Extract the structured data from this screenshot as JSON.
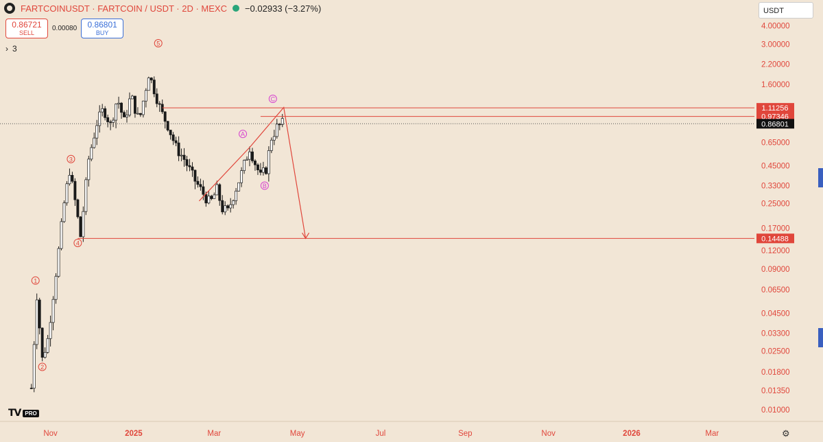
{
  "header": {
    "symbol": "FARTCOINUSDT · FARTCOIN / USDT · 2D · MEXC",
    "change": "−0.02933 (−3.27%)"
  },
  "trade": {
    "sell_price": "0.86721",
    "sell_label": "SELL",
    "spread": "0.00080",
    "buy_price": "0.86801",
    "buy_label": "BUY"
  },
  "indicators": {
    "count": "3"
  },
  "currency_select": "USDT",
  "logo": {
    "text": "TV",
    "badge": "PRO"
  },
  "colors": {
    "background": "#f2e6d6",
    "axis_text": "#e0463b",
    "line": "#e0463b",
    "wave_abc": "#d63fd0",
    "candle_up": "#ffffff",
    "candle_down": "#1a1a1a"
  },
  "chart_data": {
    "type": "candlestick",
    "title": "",
    "y_scale": "log",
    "ylim": [
      0.0085,
      5.5
    ],
    "y_ticks": [
      "4.00000",
      "3.00000",
      "2.20000",
      "1.60000",
      "0.65000",
      "0.45000",
      "0.33000",
      "0.25000",
      "0.17000",
      "0.12000",
      "0.09000",
      "0.06500",
      "0.04500",
      "0.03300",
      "0.02500",
      "0.01800",
      "0.01350",
      "0.01000"
    ],
    "x_ticks": [
      "Nov",
      "2025",
      "Mar",
      "May",
      "Jul",
      "Sep",
      "Nov",
      "2026",
      "Mar"
    ],
    "x_range": [
      "2024-09-25",
      "2026-04-01"
    ],
    "x_tick_dates": [
      "2024-11-01",
      "2025-01-01",
      "2025-03-01",
      "2025-05-01",
      "2025-07-01",
      "2025-09-01",
      "2025-11-01",
      "2026-01-01",
      "2026-03-01"
    ],
    "candle_interval": "2D",
    "price_path": [
      [
        "2024-10-18",
        0.014
      ],
      [
        "2024-10-22",
        0.06
      ],
      [
        "2024-10-26",
        0.022
      ],
      [
        "2024-10-30",
        0.03
      ],
      [
        "2024-11-03",
        0.06
      ],
      [
        "2024-11-07",
        0.12
      ],
      [
        "2024-11-11",
        0.25
      ],
      [
        "2024-11-15",
        0.42
      ],
      [
        "2024-11-19",
        0.26
      ],
      [
        "2024-11-23",
        0.15
      ],
      [
        "2024-11-29",
        0.5
      ],
      [
        "2024-12-05",
        0.88
      ],
      [
        "2024-12-10",
        1.1
      ],
      [
        "2024-12-15",
        0.85
      ],
      [
        "2024-12-20",
        1.3
      ],
      [
        "2024-12-25",
        0.9
      ],
      [
        "2024-12-30",
        1.35
      ],
      [
        "2025-01-05",
        0.9
      ],
      [
        "2025-01-12",
        1.9
      ],
      [
        "2025-01-17",
        1.4
      ],
      [
        "2025-01-21",
        1.05
      ],
      [
        "2025-01-26",
        0.85
      ],
      [
        "2025-02-01",
        0.6
      ],
      [
        "2025-02-07",
        0.5
      ],
      [
        "2025-02-14",
        0.37
      ],
      [
        "2025-02-20",
        0.3
      ],
      [
        "2025-02-26",
        0.25
      ],
      [
        "2025-03-03",
        0.31
      ],
      [
        "2025-03-07",
        0.23
      ],
      [
        "2025-03-11",
        0.22
      ],
      [
        "2025-03-16",
        0.3
      ],
      [
        "2025-03-21",
        0.4
      ],
      [
        "2025-03-27",
        0.6
      ],
      [
        "2025-03-31",
        0.47
      ],
      [
        "2025-04-04",
        0.38
      ],
      [
        "2025-04-08",
        0.43
      ],
      [
        "2025-04-12",
        0.7
      ],
      [
        "2025-04-16",
        0.82
      ],
      [
        "2025-04-20",
        0.87
      ]
    ],
    "current_price": 0.86801,
    "waves": [
      {
        "label": "1",
        "date": "2024-10-21",
        "price": 0.075
      },
      {
        "label": "2",
        "date": "2024-10-26",
        "price": 0.0195
      },
      {
        "label": "3",
        "date": "2024-11-16",
        "price": 0.5
      },
      {
        "label": "4",
        "date": "2024-11-21",
        "price": 0.135
      },
      {
        "label": "5",
        "date": "2025-01-19",
        "price": 3.05
      },
      {
        "label": "A",
        "date": "2025-03-22",
        "price": 0.74
      },
      {
        "label": "B",
        "date": "2025-04-07",
        "price": 0.33
      },
      {
        "label": "C",
        "date": "2025-04-13",
        "price": 1.28
      }
    ],
    "projection": [
      [
        "2025-02-18",
        0.26
      ],
      [
        "2025-03-27",
        0.6
      ],
      [
        "2025-04-21",
        1.12
      ],
      [
        "2025-05-07",
        0.14488
      ]
    ],
    "levels": [
      {
        "price": 1.11256,
        "label": "1.11256",
        "from": "2025-01-22",
        "style": "line"
      },
      {
        "price": 0.97346,
        "label": "0.97346",
        "from": "2025-04-04",
        "style": "line"
      },
      {
        "price": 0.86801,
        "label": "0.86801",
        "from": "2024-09-25",
        "style": "dotted"
      },
      {
        "price": 0.14488,
        "label": "0.14488",
        "from": "2024-11-21",
        "style": "line"
      }
    ]
  }
}
